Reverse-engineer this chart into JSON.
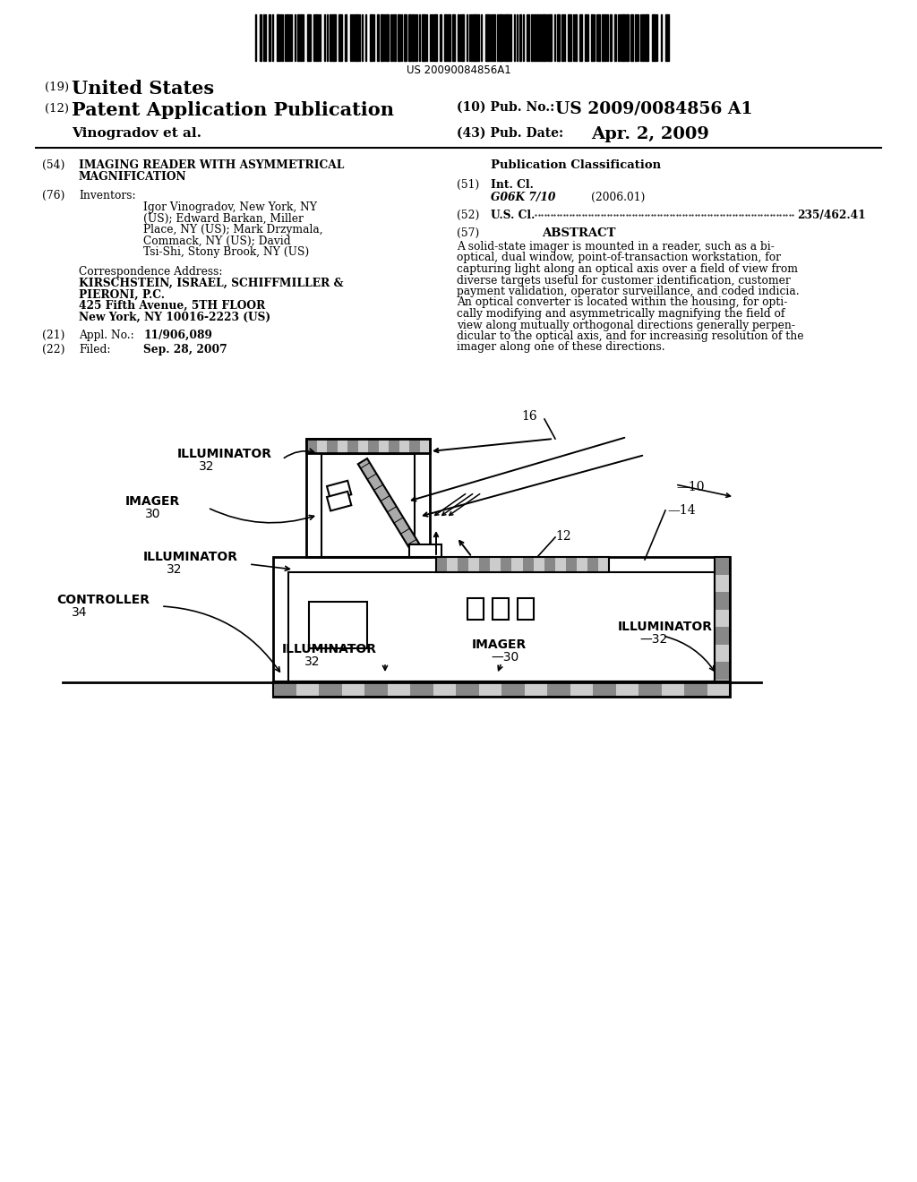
{
  "bg_color": "#ffffff",
  "barcode_text": "US 20090084856A1",
  "pub_no_label": "(10) Pub. No.:",
  "pub_no_value": "US 2009/0084856 A1",
  "name_line": "Vinogradov et al.",
  "pub_date_label": "(43) Pub. Date:",
  "pub_date_value": "Apr. 2, 2009",
  "abstract_text_lines": [
    "A solid-state imager is mounted in a reader, such as a bi-",
    "optical, dual window, point-of-transaction workstation, for",
    "capturing light along an optical axis over a field of view from",
    "diverse targets useful for customer identification, customer",
    "payment validation, operator surveillance, and coded indicia.",
    "An optical converter is located within the housing, for opti-",
    "cally modifying and asymmetrically magnifying the field of",
    "view along mutually orthogonal directions generally perpen-",
    "dicular to the optical axis, and for increasing resolution of the",
    "imager along one of these directions."
  ]
}
